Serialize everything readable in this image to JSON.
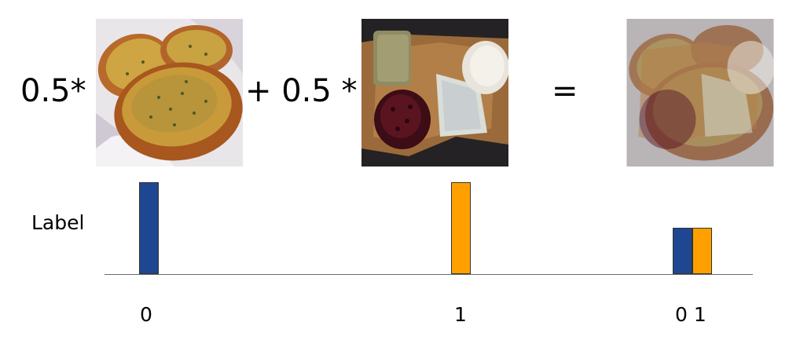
{
  "equation": {
    "coef_a": "0.5*",
    "coef_b": "+ 0.5 *",
    "equals": "="
  },
  "images": {
    "a": "garlic-bread-photo",
    "b": "cheese-board-photo",
    "mix": "blended-photo"
  },
  "axis": {
    "label": "Label"
  },
  "labels": {
    "a": {
      "tick": "0",
      "values": [
        1
      ]
    },
    "b": {
      "tick": "1",
      "values": [
        1
      ]
    },
    "mix": {
      "tick": "0 1",
      "values": [
        0.5,
        0.5
      ]
    }
  },
  "colors": {
    "class0": "#1f4690",
    "class1": "#ffa000"
  }
}
